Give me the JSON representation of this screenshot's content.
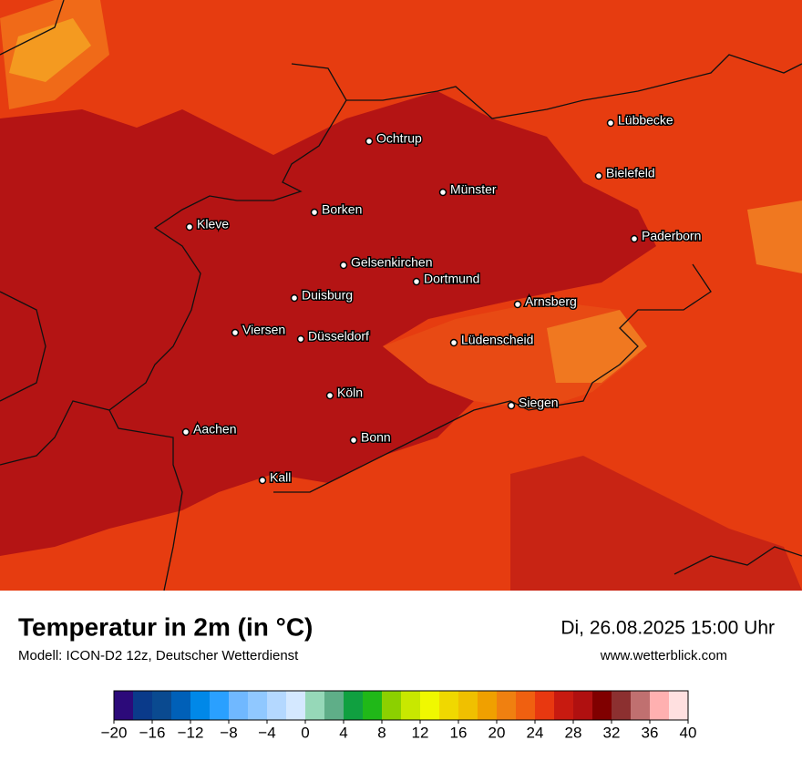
{
  "map": {
    "cities": [
      "Lübbecke",
      "Ochtrup",
      "Bielefeld",
      "Münster",
      "Borken",
      "Kleve",
      "Paderborn",
      "Gelsenkirchen",
      "Dortmund",
      "Duisburg",
      "Arnsberg",
      "Viersen",
      "Düsseldorf",
      "Lüdenscheid",
      "Köln",
      "Siegen",
      "Aachen",
      "Bonn",
      "Kall"
    ]
  },
  "header": {
    "title": "Temperatur in 2m (in °C)",
    "subtitle": "Modell: ICON-D2 12z, Deutscher Wetterdienst",
    "date": "Di, 26.08.2025 15:00 Uhr",
    "website": "www.wetterblick.com"
  },
  "colorbar": {
    "range": [
      -20,
      40
    ],
    "colors": [
      "#2c0a7a",
      "#0a3a8a",
      "#0a4a90",
      "#0060b8",
      "#0088e8",
      "#2aa0ff",
      "#70b8ff",
      "#90c8ff",
      "#b4d8ff",
      "#d4e8ff",
      "#96d8b8",
      "#5fae88",
      "#10a040",
      "#20b818",
      "#8cd000",
      "#c8e800",
      "#f0f800",
      "#f0d800",
      "#f0c000",
      "#f0a000",
      "#f08010",
      "#f06010",
      "#e83810",
      "#c81a10",
      "#b01010",
      "#800000",
      "#8c3030",
      "#c07070",
      "#ffb0b0",
      "#ffe0e0"
    ],
    "ticks": [
      {
        "value": -20,
        "label": "−20"
      },
      {
        "value": -16,
        "label": "−16"
      },
      {
        "value": -12,
        "label": "−12"
      },
      {
        "value": -8,
        "label": "−8"
      },
      {
        "value": -4,
        "label": "−4"
      },
      0,
      4,
      8,
      12,
      16,
      20,
      24,
      28,
      32,
      36,
      40
    ]
  }
}
